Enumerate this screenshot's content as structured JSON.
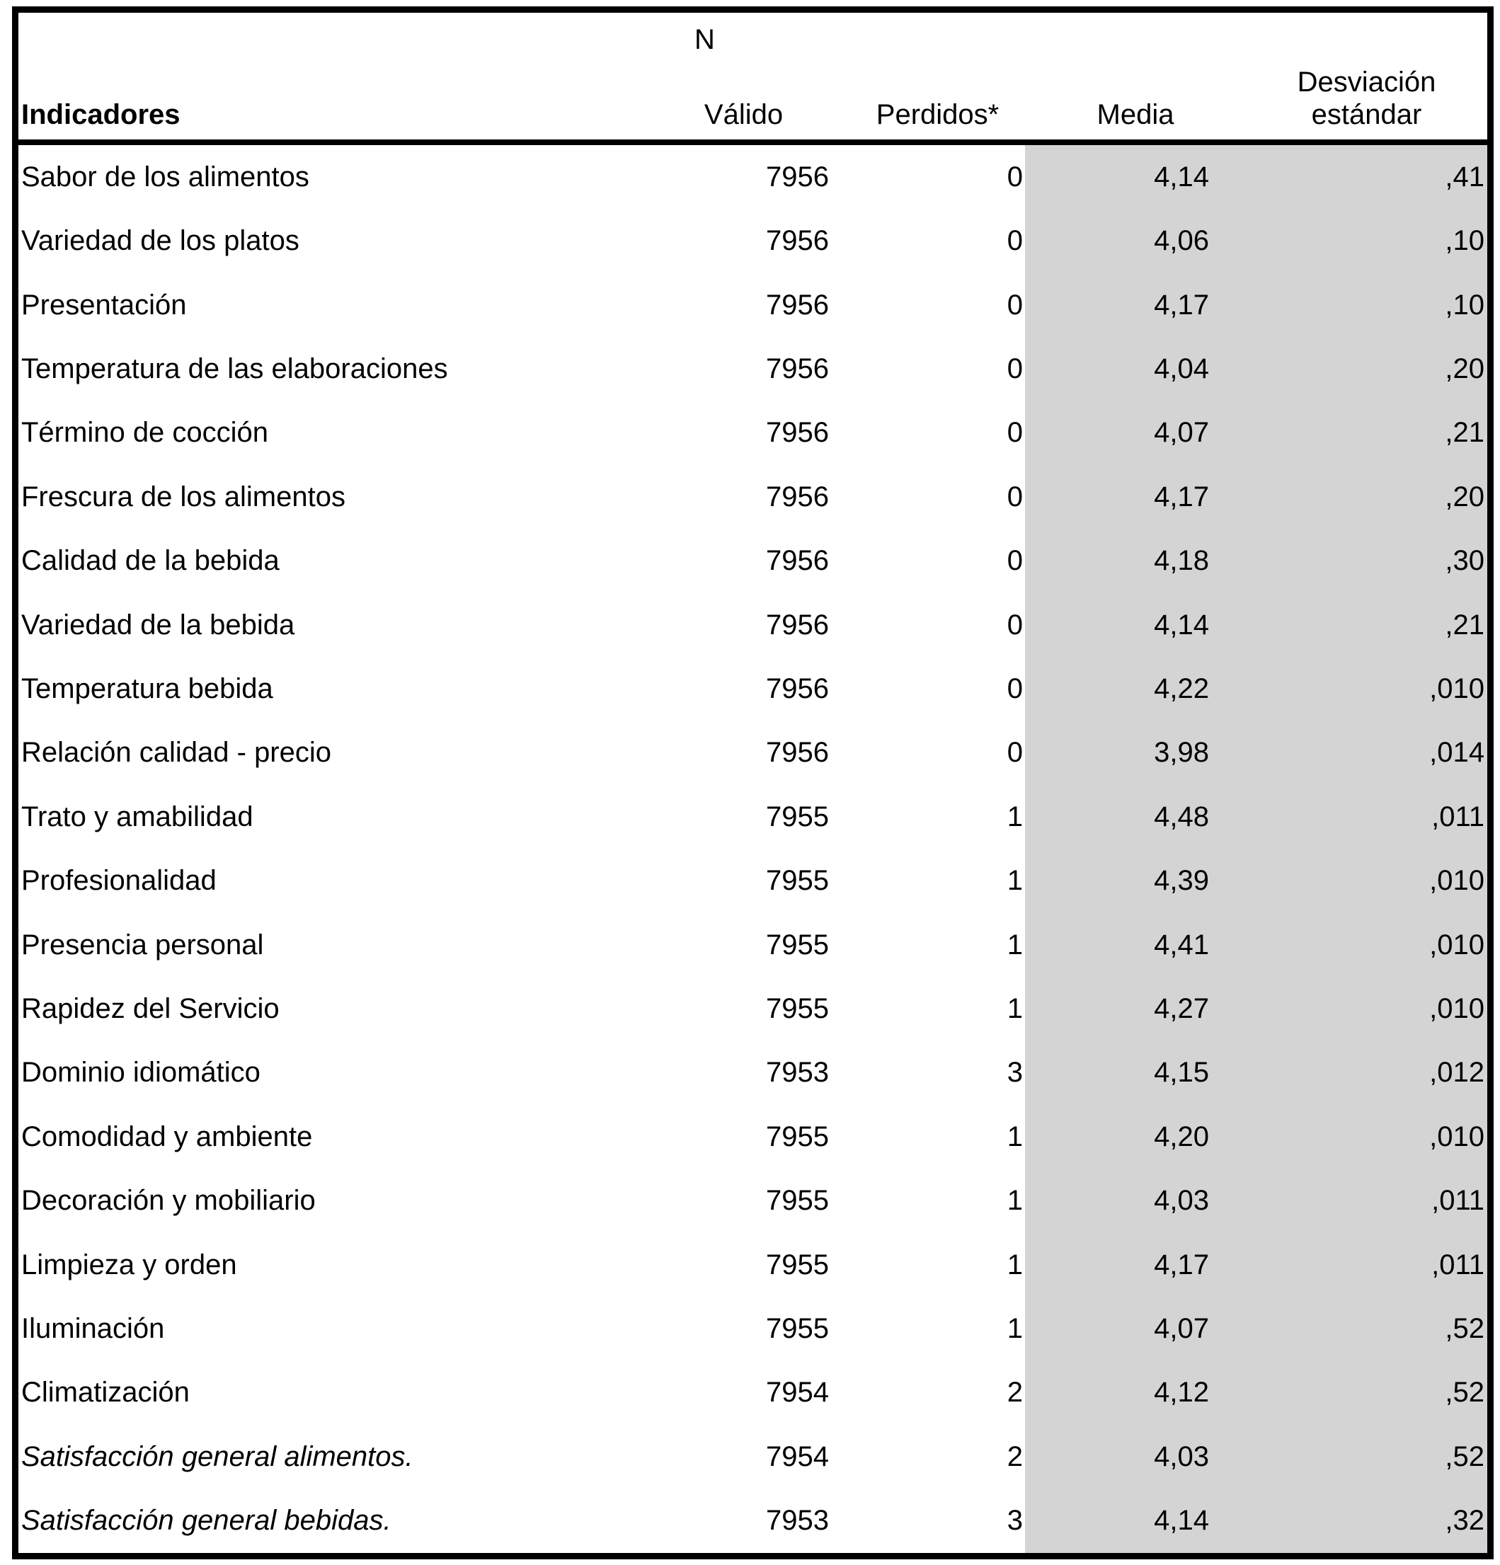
{
  "table": {
    "columns": {
      "indicators": "Indicadores",
      "n_group": "N",
      "valid": "Válido",
      "missing": "Perdidos*",
      "mean": "Media",
      "std": "Desviación estándar"
    },
    "colors": {
      "shaded_column_bg": "#d4d4d4",
      "border": "#000000",
      "text": "#000000"
    },
    "rows": [
      {
        "label": "Sabor de los alimentos",
        "valid": "7956",
        "missing": "0",
        "mean": "4,14",
        "std": ",41"
      },
      {
        "label": "Variedad de los platos",
        "valid": "7956",
        "missing": "0",
        "mean": "4,06",
        "std": ",10"
      },
      {
        "label": "Presentación",
        "valid": "7956",
        "missing": "0",
        "mean": "4,17",
        "std": ",10"
      },
      {
        "label": "Temperatura de las elaboraciones",
        "valid": "7956",
        "missing": "0",
        "mean": "4,04",
        "std": ",20"
      },
      {
        "label": "Término de cocción",
        "valid": "7956",
        "missing": "0",
        "mean": "4,07",
        "std": ",21"
      },
      {
        "label": "Frescura de los alimentos",
        "valid": "7956",
        "missing": "0",
        "mean": "4,17",
        "std": ",20"
      },
      {
        "label": "Calidad de la bebida",
        "valid": "7956",
        "missing": "0",
        "mean": "4,18",
        "std": ",30"
      },
      {
        "label": "Variedad de la bebida",
        "valid": "7956",
        "missing": "0",
        "mean": "4,14",
        "std": ",21"
      },
      {
        "label": "Temperatura bebida",
        "valid": "7956",
        "missing": "0",
        "mean": "4,22",
        "std": ",010"
      },
      {
        "label": "Relación calidad - precio",
        "valid": "7956",
        "missing": "0",
        "mean": "3,98",
        "std": ",014"
      },
      {
        "label": "Trato y amabilidad",
        "valid": "7955",
        "missing": "1",
        "mean": "4,48",
        "std": ",011"
      },
      {
        "label": "Profesionalidad",
        "valid": "7955",
        "missing": "1",
        "mean": "4,39",
        "std": ",010"
      },
      {
        "label": "Presencia personal",
        "valid": "7955",
        "missing": "1",
        "mean": "4,41",
        "std": ",010"
      },
      {
        "label": "Rapidez del Servicio",
        "valid": "7955",
        "missing": "1",
        "mean": "4,27",
        "std": ",010"
      },
      {
        "label": "Dominio idiomático",
        "valid": "7953",
        "missing": "3",
        "mean": "4,15",
        "std": ",012"
      },
      {
        "label": "Comodidad y ambiente",
        "valid": "7955",
        "missing": "1",
        "mean": "4,20",
        "std": ",010"
      },
      {
        "label": "Decoración y mobiliario",
        "valid": "7955",
        "missing": "1",
        "mean": "4,03",
        "std": ",011"
      },
      {
        "label": "Limpieza y orden",
        "valid": "7955",
        "missing": "1",
        "mean": "4,17",
        "std": ",011"
      },
      {
        "label": "Iluminación",
        "valid": "7955",
        "missing": "1",
        "mean": "4,07",
        "std": ",52"
      },
      {
        "label": "Climatización",
        "valid": "7954",
        "missing": "2",
        "mean": "4,12",
        "std": ",52"
      },
      {
        "label": "Satisfacción general alimentos.",
        "valid": "7954",
        "missing": "2",
        "mean": "4,03",
        "std": ",52",
        "emphasis": "italic"
      },
      {
        "label": "Satisfacción general bebidas.",
        "valid": "7953",
        "missing": "3",
        "mean": "4,14",
        "std": ",32",
        "emphasis": "italic"
      }
    ]
  }
}
